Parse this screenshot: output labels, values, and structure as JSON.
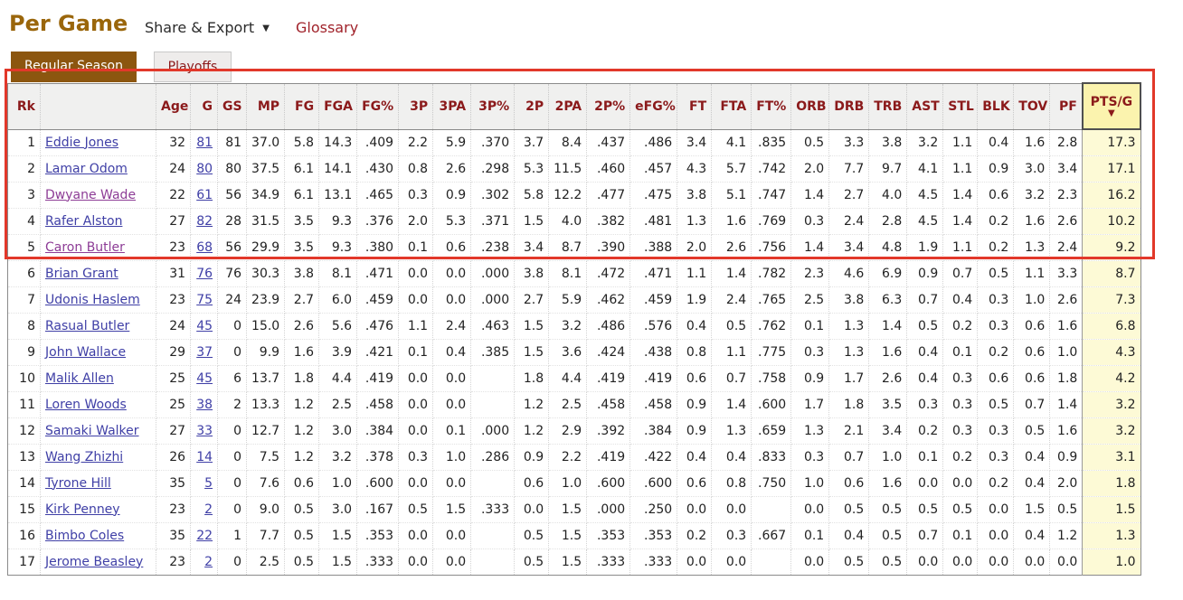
{
  "page": {
    "title": "Per Game",
    "menu": {
      "share_export": "Share & Export",
      "caret": "▼",
      "glossary": "Glossary"
    },
    "tabs": [
      {
        "label": "Regular Season",
        "active": true
      },
      {
        "label": "Playoffs",
        "active": false
      }
    ]
  },
  "colors": {
    "title_brown": "#9a660b",
    "active_tab_brown": "#8c560f",
    "header_text_red": "#8b1a1b",
    "link_blue": "#3f3fa6",
    "link_visited_purple": "#8d3c96",
    "sorted_header_yellow": "#fbf3ae",
    "sorted_column_yellow": "#fdfad6",
    "annotation_red": "#e2382a"
  },
  "annotation": {
    "type": "red-highlight-rectangle",
    "covers": "header row and rows 1-5",
    "color": "#e2382a"
  },
  "table": {
    "columns": [
      "Rk",
      "",
      "Age",
      "G",
      "GS",
      "MP",
      "FG",
      "FGA",
      "FG%",
      "3P",
      "3PA",
      "3P%",
      "2P",
      "2PA",
      "2P%",
      "eFG%",
      "FT",
      "FTA",
      "FT%",
      "ORB",
      "DRB",
      "TRB",
      "AST",
      "STL",
      "BLK",
      "TOV",
      "PF",
      "PTS/G"
    ],
    "sort_column": "PTS/G",
    "sort_indicator": "▼",
    "player_visited": [
      false,
      false,
      true,
      false,
      true,
      false,
      false,
      false,
      false,
      false,
      false,
      false,
      false,
      false,
      false,
      false,
      false
    ],
    "rows": [
      [
        "1",
        "Eddie Jones",
        "32",
        "81",
        "81",
        "37.0",
        "5.8",
        "14.3",
        ".409",
        "2.2",
        "5.9",
        ".370",
        "3.7",
        "8.4",
        ".437",
        ".486",
        "3.4",
        "4.1",
        ".835",
        "0.5",
        "3.3",
        "3.8",
        "3.2",
        "1.1",
        "0.4",
        "1.6",
        "2.8",
        "17.3"
      ],
      [
        "2",
        "Lamar Odom",
        "24",
        "80",
        "80",
        "37.5",
        "6.1",
        "14.1",
        ".430",
        "0.8",
        "2.6",
        ".298",
        "5.3",
        "11.5",
        ".460",
        ".457",
        "4.3",
        "5.7",
        ".742",
        "2.0",
        "7.7",
        "9.7",
        "4.1",
        "1.1",
        "0.9",
        "3.0",
        "3.4",
        "17.1"
      ],
      [
        "3",
        "Dwyane Wade",
        "22",
        "61",
        "56",
        "34.9",
        "6.1",
        "13.1",
        ".465",
        "0.3",
        "0.9",
        ".302",
        "5.8",
        "12.2",
        ".477",
        ".475",
        "3.8",
        "5.1",
        ".747",
        "1.4",
        "2.7",
        "4.0",
        "4.5",
        "1.4",
        "0.6",
        "3.2",
        "2.3",
        "16.2"
      ],
      [
        "4",
        "Rafer Alston",
        "27",
        "82",
        "28",
        "31.5",
        "3.5",
        "9.3",
        ".376",
        "2.0",
        "5.3",
        ".371",
        "1.5",
        "4.0",
        ".382",
        ".481",
        "1.3",
        "1.6",
        ".769",
        "0.3",
        "2.4",
        "2.8",
        "4.5",
        "1.4",
        "0.2",
        "1.6",
        "2.6",
        "10.2"
      ],
      [
        "5",
        "Caron Butler",
        "23",
        "68",
        "56",
        "29.9",
        "3.5",
        "9.3",
        ".380",
        "0.1",
        "0.6",
        ".238",
        "3.4",
        "8.7",
        ".390",
        ".388",
        "2.0",
        "2.6",
        ".756",
        "1.4",
        "3.4",
        "4.8",
        "1.9",
        "1.1",
        "0.2",
        "1.3",
        "2.4",
        "9.2"
      ],
      [
        "6",
        "Brian Grant",
        "31",
        "76",
        "76",
        "30.3",
        "3.8",
        "8.1",
        ".471",
        "0.0",
        "0.0",
        ".000",
        "3.8",
        "8.1",
        ".472",
        ".471",
        "1.1",
        "1.4",
        ".782",
        "2.3",
        "4.6",
        "6.9",
        "0.9",
        "0.7",
        "0.5",
        "1.1",
        "3.3",
        "8.7"
      ],
      [
        "7",
        "Udonis Haslem",
        "23",
        "75",
        "24",
        "23.9",
        "2.7",
        "6.0",
        ".459",
        "0.0",
        "0.0",
        ".000",
        "2.7",
        "5.9",
        ".462",
        ".459",
        "1.9",
        "2.4",
        ".765",
        "2.5",
        "3.8",
        "6.3",
        "0.7",
        "0.4",
        "0.3",
        "1.0",
        "2.6",
        "7.3"
      ],
      [
        "8",
        "Rasual Butler",
        "24",
        "45",
        "0",
        "15.0",
        "2.6",
        "5.6",
        ".476",
        "1.1",
        "2.4",
        ".463",
        "1.5",
        "3.2",
        ".486",
        ".576",
        "0.4",
        "0.5",
        ".762",
        "0.1",
        "1.3",
        "1.4",
        "0.5",
        "0.2",
        "0.3",
        "0.6",
        "1.6",
        "6.8"
      ],
      [
        "9",
        "John Wallace",
        "29",
        "37",
        "0",
        "9.9",
        "1.6",
        "3.9",
        ".421",
        "0.1",
        "0.4",
        ".385",
        "1.5",
        "3.6",
        ".424",
        ".438",
        "0.8",
        "1.1",
        ".775",
        "0.3",
        "1.3",
        "1.6",
        "0.4",
        "0.1",
        "0.2",
        "0.6",
        "1.0",
        "4.3"
      ],
      [
        "10",
        "Malik Allen",
        "25",
        "45",
        "6",
        "13.7",
        "1.8",
        "4.4",
        ".419",
        "0.0",
        "0.0",
        "",
        "1.8",
        "4.4",
        ".419",
        ".419",
        "0.6",
        "0.7",
        ".758",
        "0.9",
        "1.7",
        "2.6",
        "0.4",
        "0.3",
        "0.6",
        "0.6",
        "1.8",
        "4.2"
      ],
      [
        "11",
        "Loren Woods",
        "25",
        "38",
        "2",
        "13.3",
        "1.2",
        "2.5",
        ".458",
        "0.0",
        "0.0",
        "",
        "1.2",
        "2.5",
        ".458",
        ".458",
        "0.9",
        "1.4",
        ".600",
        "1.7",
        "1.8",
        "3.5",
        "0.3",
        "0.3",
        "0.5",
        "0.7",
        "1.4",
        "3.2"
      ],
      [
        "12",
        "Samaki Walker",
        "27",
        "33",
        "0",
        "12.7",
        "1.2",
        "3.0",
        ".384",
        "0.0",
        "0.1",
        ".000",
        "1.2",
        "2.9",
        ".392",
        ".384",
        "0.9",
        "1.3",
        ".659",
        "1.3",
        "2.1",
        "3.4",
        "0.2",
        "0.3",
        "0.3",
        "0.5",
        "1.6",
        "3.2"
      ],
      [
        "13",
        "Wang Zhizhi",
        "26",
        "14",
        "0",
        "7.5",
        "1.2",
        "3.2",
        ".378",
        "0.3",
        "1.0",
        ".286",
        "0.9",
        "2.2",
        ".419",
        ".422",
        "0.4",
        "0.4",
        ".833",
        "0.3",
        "0.7",
        "1.0",
        "0.1",
        "0.2",
        "0.3",
        "0.4",
        "0.9",
        "3.1"
      ],
      [
        "14",
        "Tyrone Hill",
        "35",
        "5",
        "0",
        "7.6",
        "0.6",
        "1.0",
        ".600",
        "0.0",
        "0.0",
        "",
        "0.6",
        "1.0",
        ".600",
        ".600",
        "0.6",
        "0.8",
        ".750",
        "1.0",
        "0.6",
        "1.6",
        "0.0",
        "0.0",
        "0.2",
        "0.4",
        "2.0",
        "1.8"
      ],
      [
        "15",
        "Kirk Penney",
        "23",
        "2",
        "0",
        "9.0",
        "0.5",
        "3.0",
        ".167",
        "0.5",
        "1.5",
        ".333",
        "0.0",
        "1.5",
        ".000",
        ".250",
        "0.0",
        "0.0",
        "",
        "0.0",
        "0.5",
        "0.5",
        "0.5",
        "0.5",
        "0.0",
        "1.5",
        "0.5",
        "1.5"
      ],
      [
        "16",
        "Bimbo Coles",
        "35",
        "22",
        "1",
        "7.7",
        "0.5",
        "1.5",
        ".353",
        "0.0",
        "0.0",
        "",
        "0.5",
        "1.5",
        ".353",
        ".353",
        "0.2",
        "0.3",
        ".667",
        "0.1",
        "0.4",
        "0.5",
        "0.7",
        "0.1",
        "0.0",
        "0.4",
        "1.2",
        "1.3"
      ],
      [
        "17",
        "Jerome Beasley",
        "23",
        "2",
        "0",
        "2.5",
        "0.5",
        "1.5",
        ".333",
        "0.0",
        "0.0",
        "",
        "0.5",
        "1.5",
        ".333",
        ".333",
        "0.0",
        "0.0",
        "",
        "0.0",
        "0.5",
        "0.5",
        "0.0",
        "0.0",
        "0.0",
        "0.0",
        "0.0",
        "1.0"
      ]
    ]
  }
}
